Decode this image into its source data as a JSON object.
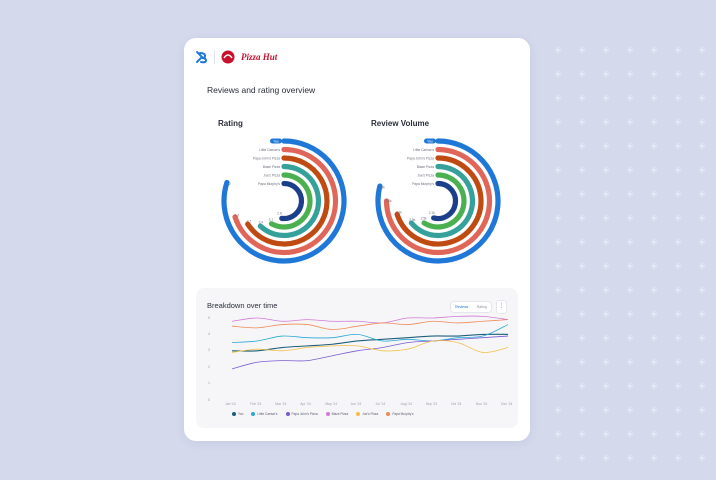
{
  "brand": {
    "name": "Pizza Hut"
  },
  "page": {
    "title": "Reviews and rating overview"
  },
  "radials": [
    {
      "title": "Rating",
      "rings": [
        {
          "label": "You",
          "value_label": "4.2",
          "color": "#1f78d8",
          "fraction": 0.8
        },
        {
          "label": "Little Caesar's",
          "value_label": "4.0",
          "color": "#e0665a",
          "fraction": 0.7
        },
        {
          "label": "Papa John's Pizza",
          "value_label": "3.7",
          "color": "#bf4a12",
          "fraction": 0.66
        },
        {
          "label": "Blaze Pizza",
          "value_label": "3.4",
          "color": "#35a19a",
          "fraction": 0.62
        },
        {
          "label": "Joe's Pizza",
          "value_label": "3.1",
          "color": "#4bb04f",
          "fraction": 0.58
        },
        {
          "label": "Papa Murphy's",
          "value_label": "2.8",
          "color": "#1c3f8c",
          "fraction": 0.52
        }
      ]
    },
    {
      "title": "Review Volume",
      "rings": [
        {
          "label": "You",
          "value_label": "3.9k",
          "color": "#1f78d8",
          "fraction": 0.79
        },
        {
          "label": "Little Caesar's",
          "value_label": "3.5k",
          "color": "#e0665a",
          "fraction": 0.75
        },
        {
          "label": "Papa John's Pizza",
          "value_label": "3.2k",
          "color": "#bf4a12",
          "fraction": 0.7
        },
        {
          "label": "Blaze Pizza",
          "value_label": "2.9k",
          "color": "#35a19a",
          "fraction": 0.64
        },
        {
          "label": "Joe's Pizza",
          "value_label": "2.5k",
          "color": "#4bb04f",
          "fraction": 0.59
        },
        {
          "label": "Papa Murphy's",
          "value_label": "2.1k",
          "color": "#1c3f8c",
          "fraction": 0.54
        }
      ]
    }
  ],
  "breakdown": {
    "title": "Breakdown over time",
    "toggle": {
      "active": "Reviews",
      "inactive": "Rating"
    },
    "menu_icon": "more-vertical-icon"
  },
  "chart_data": {
    "type": "line",
    "x": [
      "Jan '24",
      "Feb '24",
      "Mar '24",
      "Apr '24",
      "May '24",
      "Jun '24",
      "Jul '24",
      "Aug '24",
      "Sep '24",
      "Oct '24",
      "Nov '24",
      "Dec '24"
    ],
    "ylim": [
      0,
      5
    ],
    "yticks": [
      "0",
      "1",
      "2",
      "3",
      "4",
      "5"
    ],
    "series": [
      {
        "name": "You",
        "color": "#1f5f7a",
        "values": [
          3.0,
          3.0,
          3.2,
          3.3,
          3.4,
          3.6,
          3.7,
          3.8,
          3.9,
          3.9,
          4.0,
          4.0
        ]
      },
      {
        "name": "Little Caesar's",
        "color": "#2aa7d6",
        "values": [
          3.5,
          3.6,
          3.9,
          3.8,
          3.8,
          4.0,
          3.6,
          3.7,
          3.6,
          3.8,
          3.9,
          4.6
        ]
      },
      {
        "name": "Papa John's Pizza",
        "color": "#7a5cd0",
        "values": [
          1.9,
          2.3,
          2.4,
          2.4,
          2.7,
          3.0,
          3.2,
          3.5,
          3.6,
          3.7,
          3.8,
          3.9
        ]
      },
      {
        "name": "Blaze Pizza",
        "color": "#d17ad6",
        "values": [
          4.8,
          5.0,
          4.8,
          4.9,
          4.8,
          4.8,
          4.7,
          5.0,
          5.0,
          5.1,
          5.1,
          4.9
        ]
      },
      {
        "name": "Joe's Pizza",
        "color": "#f2c04a",
        "values": [
          2.9,
          3.1,
          3.0,
          3.2,
          3.3,
          3.3,
          3.0,
          3.1,
          3.6,
          3.5,
          2.9,
          3.2
        ]
      },
      {
        "name": "Papa Murphy's",
        "color": "#f08a5a",
        "values": [
          4.5,
          4.4,
          4.6,
          4.6,
          4.3,
          4.5,
          4.7,
          4.6,
          4.8,
          4.7,
          4.8,
          4.9
        ]
      }
    ]
  }
}
